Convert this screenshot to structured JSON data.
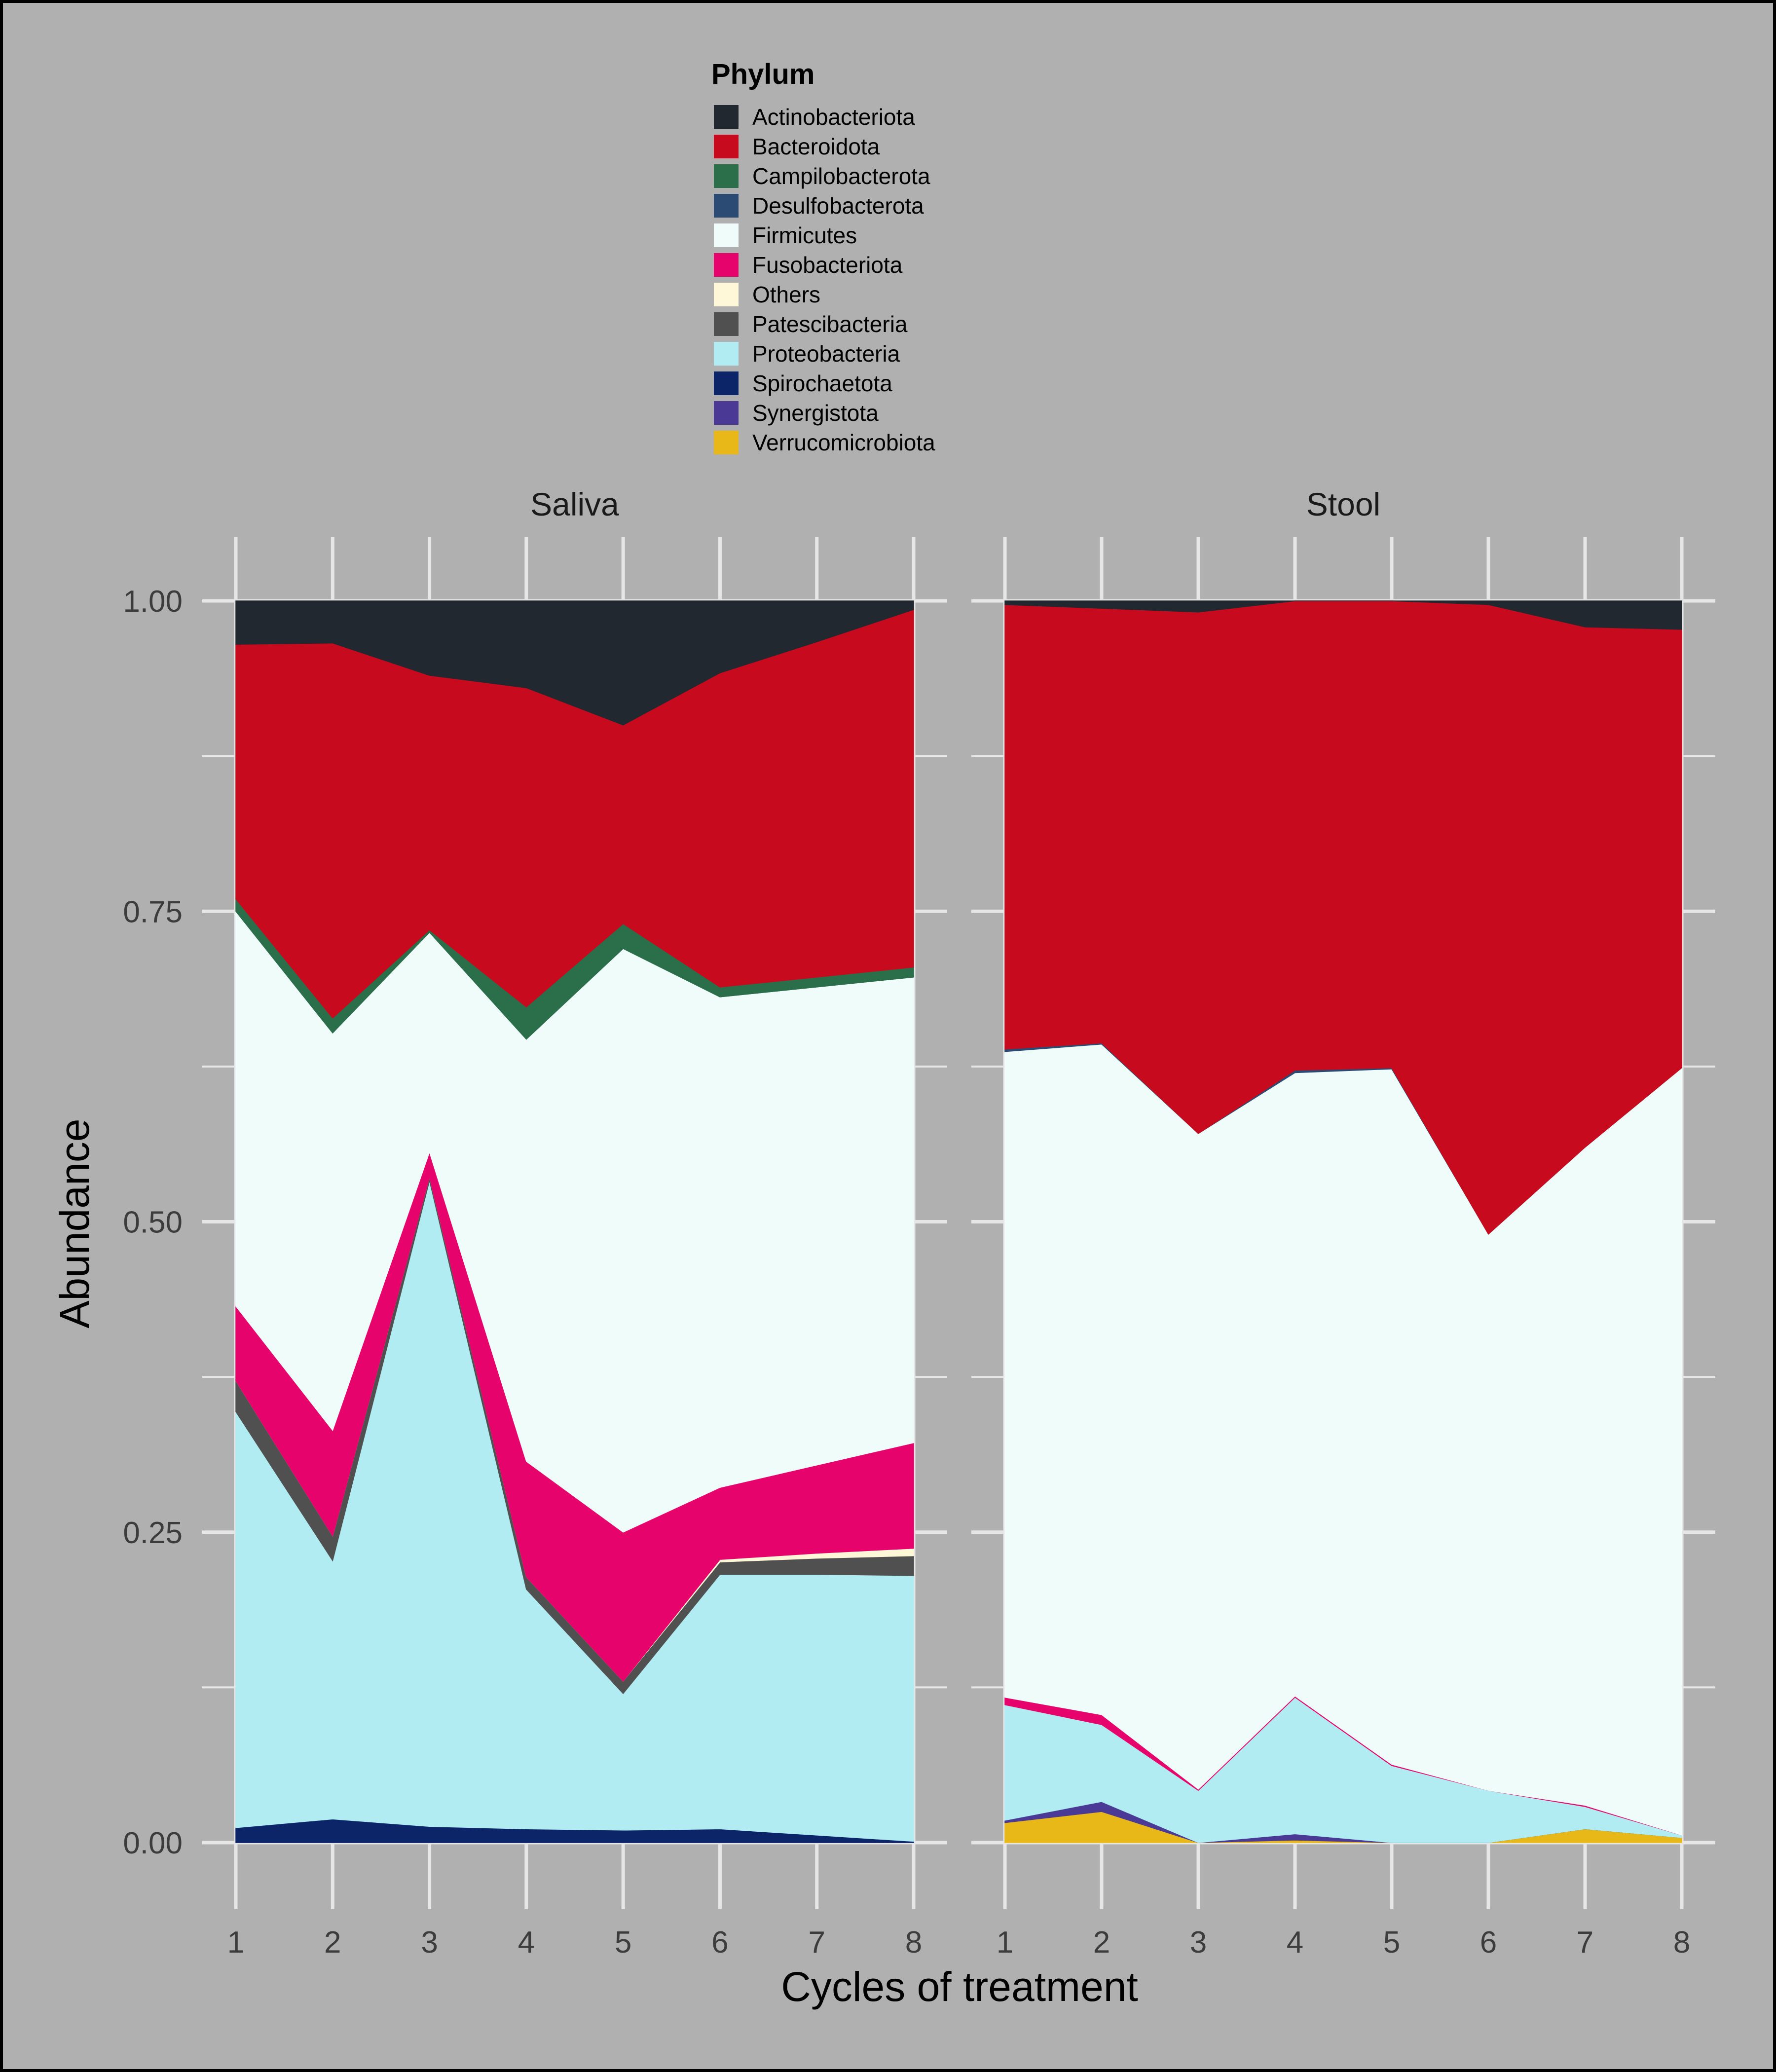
{
  "colors": {
    "background": "#b0b0b0",
    "gridline": "#e6e6e6",
    "axis_text": "#3c3c3c",
    "frame": "#000000"
  },
  "chart_data": {
    "type": "area",
    "stacked": true,
    "xlabel": "Cycles of treatment",
    "ylabel": "Abundance",
    "ylim": [
      0,
      1
    ],
    "y_ticks": [
      "0.00",
      "0.25",
      "0.50",
      "0.75",
      "1.00"
    ],
    "x": [
      1,
      2,
      3,
      4,
      5,
      6,
      7,
      8
    ],
    "legend": {
      "title": "Phylum",
      "position": "top"
    },
    "grid": true,
    "series_order_bottom_to_top": [
      "Verrucomicrobiota",
      "Synergistota",
      "Spirochaetota",
      "Proteobacteria",
      "Patescibacteria",
      "Others",
      "Fusobacteriota",
      "Firmicutes",
      "Desulfobacterota",
      "Campilobacterota",
      "Bacteroidota",
      "Actinobacteriota"
    ],
    "series": [
      {
        "name": "Actinobacteriota",
        "color": "#22282f"
      },
      {
        "name": "Bacteroidota",
        "color": "#c80a1e"
      },
      {
        "name": "Campilobacterota",
        "color": "#2b6e4a"
      },
      {
        "name": "Desulfobacterota",
        "color": "#2b4a74"
      },
      {
        "name": "Firmicutes",
        "color": "#effcfa"
      },
      {
        "name": "Fusobacteriota",
        "color": "#e6046c"
      },
      {
        "name": "Others",
        "color": "#fff8d8"
      },
      {
        "name": "Patescibacteria",
        "color": "#505050"
      },
      {
        "name": "Proteobacteria",
        "color": "#b0ecf2"
      },
      {
        "name": "Spirochaetota",
        "color": "#0c2468"
      },
      {
        "name": "Synergistota",
        "color": "#4a3a96"
      },
      {
        "name": "Verrucomicrobiota",
        "color": "#e8b818"
      }
    ],
    "panels": [
      {
        "title": "Saliva",
        "values": {
          "Verrucomicrobiota": [
            0,
            0,
            0,
            0,
            0,
            0,
            0,
            0
          ],
          "Synergistota": [
            0,
            0,
            0,
            0,
            0,
            0,
            0,
            0
          ],
          "Spirochaetota": [
            0.012,
            0.019,
            0.013,
            0.011,
            0.01,
            0.011,
            0.006,
            0.001
          ],
          "Proteobacteria": [
            0.335,
            0.208,
            0.52,
            0.193,
            0.11,
            0.205,
            0.21,
            0.214
          ],
          "Patescibacteria": [
            0.025,
            0.02,
            0.003,
            0.01,
            0.01,
            0.01,
            0.013,
            0.016
          ],
          "Others": [
            0,
            0,
            0,
            0,
            0,
            0.002,
            0.004,
            0.006
          ],
          "Fusobacteriota": [
            0.06,
            0.085,
            0.02,
            0.093,
            0.12,
            0.058,
            0.071,
            0.085
          ],
          "Firmicutes": [
            0.318,
            0.32,
            0.177,
            0.34,
            0.47,
            0.395,
            0.385,
            0.375
          ],
          "Desulfobacterota": [
            0,
            0,
            0,
            0,
            0,
            0,
            0,
            0
          ],
          "Campilobacterota": [
            0.01,
            0.012,
            0.002,
            0.026,
            0.02,
            0.008,
            0.008,
            0.008
          ],
          "Bacteroidota": [
            0.205,
            0.302,
            0.205,
            0.257,
            0.16,
            0.253,
            0.27,
            0.288
          ],
          "Actinobacteriota": [
            0.035,
            0.034,
            0.06,
            0.07,
            0.1,
            0.058,
            0.033,
            0.007
          ]
        }
      },
      {
        "title": "Stool",
        "values": {
          "Verrucomicrobiota": [
            0.016,
            0.025,
            0.0,
            0.002,
            0.0,
            0.0,
            0.011,
            0.004
          ],
          "Synergistota": [
            0.002,
            0.008,
            0.0,
            0.005,
            0.0,
            0.0,
            0.0,
            0.0
          ],
          "Spirochaetota": [
            0,
            0,
            0,
            0,
            0,
            0,
            0,
            0
          ],
          "Proteobacteria": [
            0.093,
            0.062,
            0.042,
            0.11,
            0.062,
            0.042,
            0.018,
            0.002
          ],
          "Patescibacteria": [
            0,
            0,
            0,
            0,
            0,
            0,
            0,
            0
          ],
          "Others": [
            0,
            0,
            0,
            0,
            0,
            0,
            0,
            0
          ],
          "Fusobacteriota": [
            0.006,
            0.008,
            0.001,
            0.001,
            0.001,
            0.0,
            0.001,
            0.0
          ],
          "Firmicutes": [
            0.52,
            0.54,
            0.528,
            0.502,
            0.56,
            0.448,
            0.53,
            0.618
          ],
          "Desulfobacterota": [
            0.002,
            0.001,
            0.0,
            0.002,
            0.001,
            0.0,
            0.0,
            0.0
          ],
          "Campilobacterota": [
            0,
            0,
            0,
            0,
            0,
            0,
            0,
            0
          ],
          "Bacteroidota": [
            0.358,
            0.35,
            0.42,
            0.378,
            0.376,
            0.507,
            0.419,
            0.353
          ],
          "Actinobacteriota": [
            0.003,
            0.006,
            0.009,
            0.0,
            0.0,
            0.003,
            0.021,
            0.023
          ]
        }
      }
    ]
  }
}
